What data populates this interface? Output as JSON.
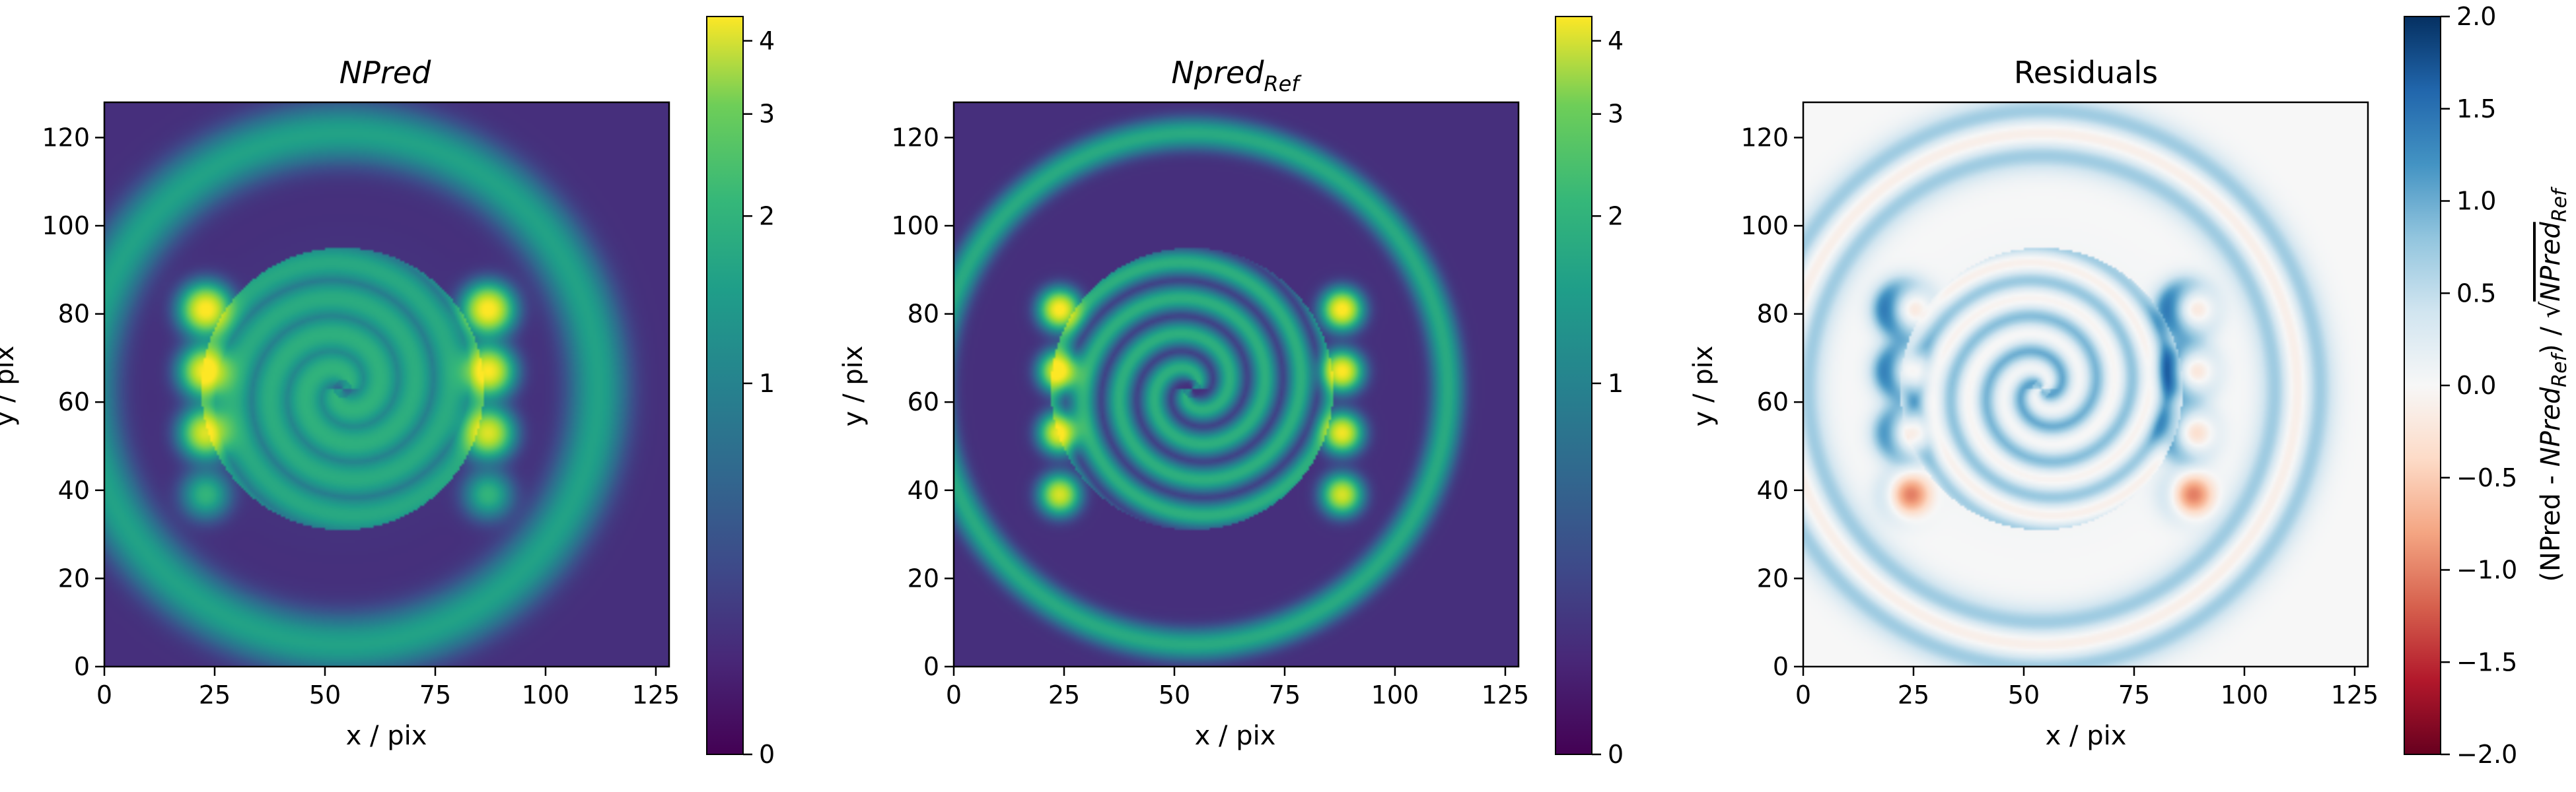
{
  "chart_data": [
    {
      "type": "heatmap",
      "title": "NPred",
      "xlabel": "x / pix",
      "ylabel": "y / pix",
      "xlim": [
        0,
        128
      ],
      "ylim": [
        0,
        128
      ],
      "xticks": [
        0,
        25,
        50,
        75,
        100,
        125
      ],
      "yticks": [
        0,
        20,
        40,
        60,
        80,
        100,
        120
      ],
      "colormap": "viridis",
      "colorbar": {
        "scale": "asinh",
        "range": [
          0,
          4.4
        ],
        "ticks": [
          0,
          1,
          2,
          3,
          4
        ]
      },
      "features": {
        "ring": {
          "center": [
            54,
            63
          ],
          "radius": 58,
          "intensity": 1.05
        },
        "point_sources": [
          {
            "x": 23,
            "y": 81,
            "intensity": 4.4
          },
          {
            "x": 23,
            "y": 67,
            "intensity": 4.2
          },
          {
            "x": 23,
            "y": 53,
            "intensity": 3.6
          },
          {
            "x": 23,
            "y": 39,
            "intensity": 1.4
          },
          {
            "x": 87,
            "y": 81,
            "intensity": 4.4
          },
          {
            "x": 87,
            "y": 67,
            "intensity": 4.2
          },
          {
            "x": 87,
            "y": 53,
            "intensity": 3.6
          },
          {
            "x": 87,
            "y": 39,
            "intensity": 1.4
          }
        ],
        "spiral": {
          "center": [
            54,
            63
          ],
          "intensity": 1.2
        },
        "background": 0.2
      }
    },
    {
      "type": "heatmap",
      "title": "Npred",
      "title_subscript": "Ref",
      "xlabel": "x / pix",
      "ylabel": "y / pix",
      "xlim": [
        0,
        128
      ],
      "ylim": [
        0,
        128
      ],
      "xticks": [
        0,
        25,
        50,
        75,
        100,
        125
      ],
      "yticks": [
        0,
        20,
        40,
        60,
        80,
        100,
        120
      ],
      "colormap": "viridis",
      "colorbar": {
        "scale": "asinh",
        "range": [
          0,
          4.4
        ],
        "ticks": [
          0,
          1,
          2,
          3,
          4
        ]
      },
      "features": {
        "ring": {
          "center": [
            54,
            63
          ],
          "radius": 58,
          "intensity": 1.2
        },
        "point_sources": [
          {
            "x": 24,
            "y": 81,
            "intensity": 4.4
          },
          {
            "x": 24,
            "y": 67,
            "intensity": 4.3
          },
          {
            "x": 24,
            "y": 53,
            "intensity": 4.0
          },
          {
            "x": 24,
            "y": 39,
            "intensity": 3.5
          },
          {
            "x": 88,
            "y": 81,
            "intensity": 4.4
          },
          {
            "x": 88,
            "y": 67,
            "intensity": 4.3
          },
          {
            "x": 88,
            "y": 53,
            "intensity": 4.0
          },
          {
            "x": 88,
            "y": 39,
            "intensity": 3.5
          }
        ],
        "spiral": {
          "center": [
            54,
            63
          ],
          "intensity": 1.3
        },
        "background": 0.2
      }
    },
    {
      "type": "heatmap",
      "title": "Residuals",
      "xlabel": "x / pix",
      "ylabel": "y / pix",
      "xlim": [
        0,
        128
      ],
      "ylim": [
        0,
        128
      ],
      "xticks": [
        0,
        25,
        50,
        75,
        100,
        125
      ],
      "yticks": [
        0,
        20,
        40,
        60,
        80,
        100,
        120
      ],
      "colormap": "RdBu",
      "colorbar": {
        "range": [
          -2.0,
          2.0
        ],
        "ticks": [
          "2.0",
          "1.5",
          "1.0",
          "0.5",
          "0.0",
          "−0.5",
          "−1.0",
          "−1.5",
          "−2.0"
        ],
        "label": "(NPred - NPred_Ref) / √NPred_Ref"
      },
      "features": {
        "ring": {
          "center": [
            54,
            63
          ],
          "radius": 58
        },
        "point_sources_x": [
          24,
          88
        ],
        "point_sources_y": [
          81,
          67,
          53,
          39
        ],
        "spiral": {
          "center": [
            54,
            63
          ]
        }
      }
    }
  ]
}
